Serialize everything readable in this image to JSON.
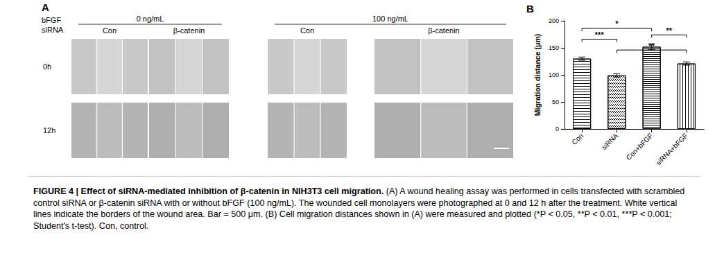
{
  "panel_a": {
    "label": "A",
    "row_header": [
      "bFGF",
      "siRNA"
    ],
    "conditions": [
      {
        "bfgf": "0 ng/mL",
        "groups": [
          "Con",
          "β-catenin"
        ]
      },
      {
        "bfgf": "100 ng/mL",
        "groups": [
          "Con",
          "β-catenin"
        ]
      }
    ],
    "rows": [
      "0h",
      "12h"
    ]
  },
  "chart_data": {
    "type": "bar",
    "title": "B",
    "ylabel": "Migration distance (μm)",
    "categories": [
      "Con",
      "siRNA",
      "Con+bFGF",
      "siRNA+bFGF"
    ],
    "values": [
      130,
      99,
      152,
      121
    ],
    "errors": [
      3,
      3,
      5,
      3
    ],
    "color": "#ffffff",
    "ylim": [
      0,
      200
    ],
    "yticks": [
      0,
      50,
      100,
      150,
      200
    ],
    "grid": false,
    "significance": [
      {
        "from": "Con",
        "to": "Con+bFGF",
        "y": 186,
        "label": "*"
      },
      {
        "from": "Con+bFGF",
        "to": "siRNA+bFGF",
        "y": 174,
        "label": "**"
      },
      {
        "from": "Con",
        "to": "siRNA",
        "y": 166,
        "label": "***"
      },
      {
        "from": "siRNA",
        "to": "siRNA+bFGF",
        "y": 146,
        "label": "**"
      }
    ]
  },
  "caption": {
    "title": "FIGURE 4 | Effect of siRNA-mediated inhibition of β-catenin in NIH3T3 cell migration.",
    "body": "(A) A wound healing assay was performed in cells transfected with scrambled control siRNA or β-catenin siRNA with or without bFGF (100 ng/mL). The wounded cell monolayers were photographed at 0 and 12 h after the treatment. White vertical lines indicate the borders of the wound area. Bar = 500 μm. (B) Cell migration distances shown in (A) were measured and plotted (*P < 0.05, **P < 0.01, ***P < 0.001; Student's t-test). Con, control."
  }
}
